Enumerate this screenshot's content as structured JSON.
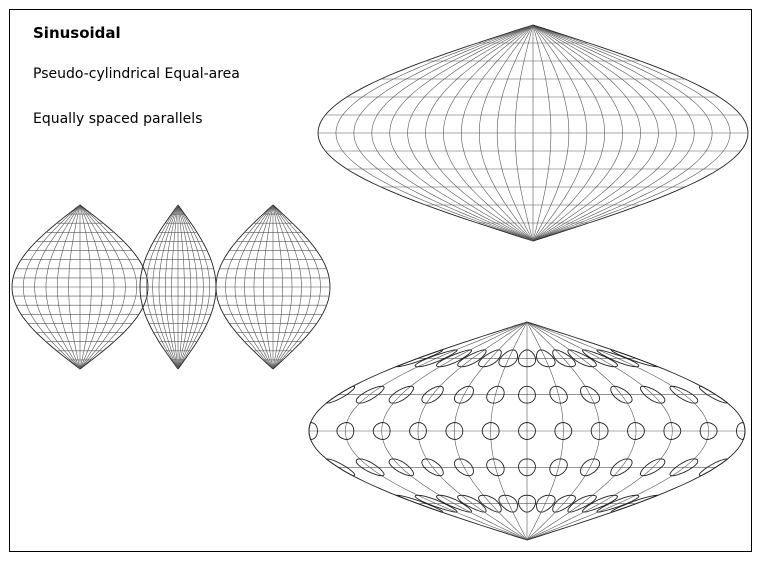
{
  "slide": {
    "title": "Sinusoidal",
    "lines": [
      "Pseudo-cylindrical Equal-area",
      "Equally spaced parallels"
    ]
  }
}
